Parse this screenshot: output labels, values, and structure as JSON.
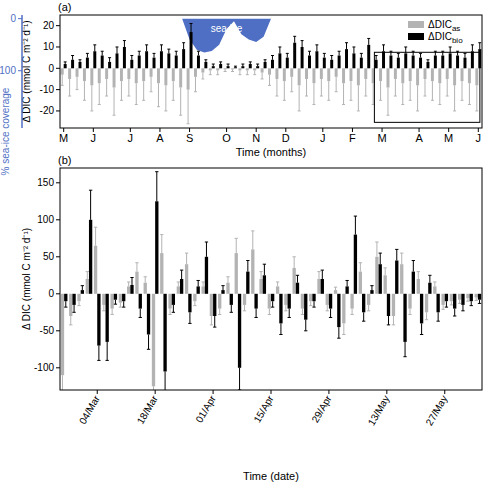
{
  "chart_data": [
    {
      "type": "bar",
      "title": "(a)",
      "x_label": "Time (months)",
      "y_label": "Δ DIC (mmol C m⁻² d⁻¹)",
      "y2_label": "% sea-ice coverage",
      "categories": [
        "M",
        null,
        null,
        null,
        "J",
        null,
        null,
        null,
        null,
        "J",
        null,
        null,
        null,
        "A",
        null,
        null,
        null,
        "S",
        null,
        null,
        null,
        null,
        "O",
        null,
        null,
        null,
        "N",
        null,
        null,
        null,
        "D",
        null,
        null,
        null,
        null,
        "J",
        null,
        null,
        null,
        "F",
        null,
        null,
        null,
        "M",
        null,
        null,
        null,
        null,
        "A",
        null,
        null,
        null,
        "M",
        null,
        null,
        null,
        "J"
      ],
      "ylim": [
        -28,
        25
      ],
      "yticks": [
        -20,
        -10,
        0,
        10,
        20
      ],
      "y2lim": [
        210,
        -7
      ],
      "y2ticks": [
        0,
        100
      ],
      "legend": "upper right",
      "series": [
        {
          "name": "ΔDICas",
          "color": "#b3b3b3",
          "values": [
            -3,
            -5,
            -4,
            -6,
            -8,
            -7,
            -5,
            -9,
            -6,
            -5,
            -7,
            -6,
            -4,
            -7,
            -8,
            -6,
            -9,
            -10,
            -4,
            -2,
            -1,
            -1,
            -0.5,
            -0.5,
            -1,
            -1,
            -1,
            -2,
            -3,
            -5,
            -6,
            -4,
            -8,
            -5,
            -7,
            -5,
            -6,
            -4,
            -7,
            -6,
            -8,
            -5,
            -7,
            -6,
            -9,
            -5,
            -7,
            -6,
            -8,
            -5,
            -6,
            -7,
            -5,
            -8,
            -6,
            -7,
            -8
          ],
          "errors": [
            5,
            8,
            6,
            9,
            12,
            10,
            8,
            13,
            9,
            8,
            10,
            9,
            7,
            11,
            12,
            9,
            13,
            16,
            7,
            3,
            2,
            2,
            1,
            1,
            2,
            2,
            2,
            3,
            5,
            8,
            9,
            7,
            12,
            8,
            10,
            8,
            9,
            7,
            10,
            9,
            12,
            8,
            10,
            9,
            13,
            8,
            10,
            9,
            12,
            8,
            9,
            10,
            8,
            12,
            9,
            10,
            12
          ]
        },
        {
          "name": "ΔDICbio",
          "color": "#000000",
          "values": [
            2,
            4,
            3,
            5,
            8,
            6,
            3,
            7,
            10,
            4,
            6,
            8,
            5,
            8,
            7,
            6,
            9,
            17,
            6,
            3,
            1,
            2,
            1,
            0.5,
            1,
            2,
            1,
            3,
            4,
            7,
            5,
            12,
            10,
            6,
            8,
            5,
            4,
            6,
            9,
            7,
            5,
            11,
            4,
            8,
            6,
            5,
            7,
            6,
            5,
            3,
            6,
            6,
            7,
            6,
            5,
            8,
            9
          ],
          "errors": [
            1,
            2,
            1,
            2,
            3,
            2,
            2,
            3,
            3,
            2,
            2,
            3,
            2,
            3,
            2,
            2,
            3,
            4,
            2,
            1,
            1,
            1,
            1,
            0.5,
            1,
            1,
            1,
            1,
            2,
            3,
            2,
            3,
            3,
            2,
            3,
            2,
            2,
            2,
            3,
            3,
            2,
            3,
            2,
            3,
            2,
            2,
            3,
            2,
            2,
            1,
            2,
            2,
            3,
            2,
            2,
            3,
            3
          ]
        },
        {
          "name": "sea ice",
          "type": "area",
          "axis": "y2",
          "color": "#4f6fc4",
          "values": [
            null,
            null,
            null,
            null,
            null,
            null,
            null,
            null,
            null,
            null,
            null,
            null,
            null,
            null,
            null,
            null,
            0,
            40,
            60,
            65,
            62,
            50,
            20,
            5,
            30,
            40,
            45,
            35,
            0,
            null,
            null,
            null,
            null,
            null,
            null,
            null,
            null,
            null,
            null,
            null,
            null,
            null,
            null,
            null,
            null,
            null,
            null,
            null,
            null,
            null,
            null,
            null,
            null,
            null,
            null,
            null,
            null
          ]
        }
      ]
    },
    {
      "type": "bar",
      "title": "(b)",
      "x_label": "Time (date)",
      "y_label": "Δ DIC (mmol C m⁻² d⁻¹)",
      "categories": [
        null,
        null,
        null,
        null,
        "04/Mar",
        null,
        null,
        null,
        null,
        null,
        null,
        "18/Mar",
        null,
        null,
        null,
        null,
        null,
        null,
        "01/Apr",
        null,
        null,
        null,
        null,
        null,
        null,
        "15/Apr",
        null,
        null,
        null,
        null,
        null,
        null,
        "29/Apr",
        null,
        null,
        null,
        null,
        null,
        null,
        "13/May",
        null,
        null,
        null,
        null,
        null,
        null,
        "27/May",
        null,
        null,
        null,
        null
      ],
      "ylim": [
        -130,
        170
      ],
      "yticks": [
        -100,
        -50,
        0,
        50,
        100,
        150
      ],
      "series": [
        {
          "color": "#b3b3b3",
          "values": [
            -110,
            -30,
            -10,
            20,
            65,
            -15,
            -20,
            -12,
            10,
            30,
            15,
            -125,
            55,
            -20,
            10,
            40,
            -10,
            10,
            -30,
            -20,
            15,
            55,
            -15,
            60,
            20,
            -20,
            10,
            -15,
            35,
            -20,
            -10,
            20,
            -15,
            5,
            -40,
            -20,
            30,
            -15,
            50,
            25,
            -30,
            40,
            -20,
            20,
            -25,
            10,
            -15,
            -10,
            -8,
            -6,
            -5
          ],
          "errors": [
            30,
            12,
            6,
            10,
            25,
            8,
            8,
            6,
            6,
            12,
            8,
            40,
            25,
            8,
            6,
            15,
            6,
            6,
            12,
            8,
            8,
            20,
            8,
            25,
            10,
            8,
            6,
            8,
            15,
            8,
            6,
            10,
            8,
            4,
            15,
            8,
            12,
            8,
            20,
            10,
            12,
            15,
            8,
            10,
            10,
            6,
            6,
            5,
            5,
            4,
            4
          ]
        },
        {
          "color": "#000000",
          "values": [
            -10,
            -15,
            5,
            100,
            -70,
            -65,
            -8,
            -10,
            12,
            -20,
            -55,
            125,
            -105,
            -15,
            20,
            -25,
            10,
            50,
            -30,
            5,
            -15,
            -100,
            30,
            -20,
            25,
            -10,
            -40,
            -20,
            15,
            -35,
            -10,
            20,
            -20,
            -45,
            10,
            80,
            -25,
            5,
            40,
            -30,
            45,
            -65,
            30,
            -40,
            15,
            -25,
            -10,
            -20,
            -15,
            -10,
            -8
          ],
          "errors": [
            8,
            10,
            6,
            40,
            20,
            25,
            6,
            8,
            10,
            12,
            20,
            40,
            30,
            10,
            12,
            15,
            8,
            20,
            15,
            6,
            10,
            30,
            15,
            12,
            15,
            8,
            15,
            12,
            10,
            15,
            8,
            12,
            12,
            15,
            8,
            25,
            12,
            6,
            15,
            12,
            15,
            20,
            15,
            15,
            10,
            12,
            8,
            10,
            8,
            6,
            5
          ]
        }
      ]
    }
  ]
}
